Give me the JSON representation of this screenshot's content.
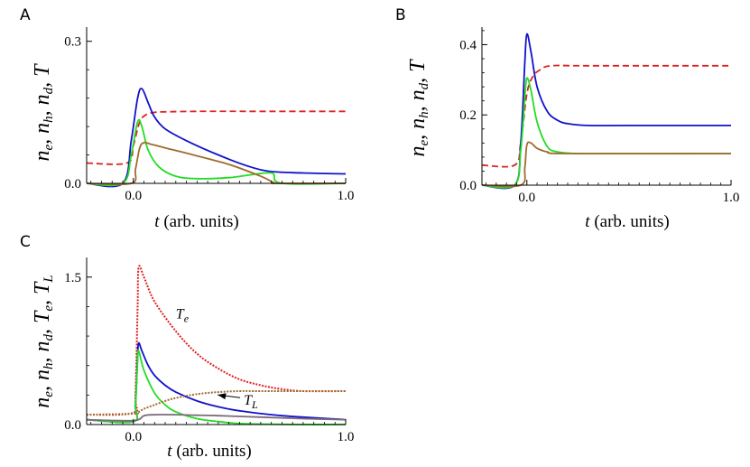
{
  "chart_data": [
    {
      "panel": "A",
      "type": "line",
      "ylabel": "n_e, n_h, n_d, T",
      "xlabel": "t (arb. units)",
      "xlim": [
        -0.22,
        1.0
      ],
      "ylim": [
        0,
        0.33
      ],
      "xticks": [
        {
          "v": 0.0,
          "label": "0.0"
        },
        {
          "v": 1.0,
          "label": "1.0"
        }
      ],
      "yticks": [
        {
          "v": 0.0,
          "label": "0.0"
        },
        {
          "v": 0.3,
          "label": "0.3"
        }
      ],
      "series": [
        {
          "name": "T",
          "color": "#e02020",
          "dash": true,
          "x": [
            -0.22,
            -0.03,
            0.0,
            0.03,
            0.06,
            0.1,
            0.15,
            0.3,
            0.6,
            1.0
          ],
          "y": [
            0.043,
            0.043,
            0.08,
            0.13,
            0.145,
            0.15,
            0.151,
            0.152,
            0.152,
            0.152
          ]
        },
        {
          "name": "n_e",
          "color": "#1111cc",
          "x": [
            -0.22,
            -0.05,
            -0.01,
            0.02,
            0.04,
            0.07,
            0.1,
            0.15,
            0.25,
            0.4,
            0.55,
            0.65,
            0.8,
            1.0
          ],
          "y": [
            0.0,
            0.0,
            0.09,
            0.18,
            0.2,
            0.17,
            0.14,
            0.115,
            0.09,
            0.06,
            0.035,
            0.025,
            0.022,
            0.02
          ]
        },
        {
          "name": "n_h",
          "color": "#22dd22",
          "x": [
            -0.22,
            -0.05,
            -0.01,
            0.02,
            0.04,
            0.07,
            0.12,
            0.2,
            0.3,
            0.45,
            0.55,
            0.62,
            0.66,
            0.7,
            1.0
          ],
          "y": [
            0.0,
            0.0,
            0.06,
            0.13,
            0.12,
            0.07,
            0.035,
            0.015,
            0.01,
            0.012,
            0.018,
            0.022,
            0.02,
            0.0,
            0.0
          ]
        },
        {
          "name": "n_d",
          "color": "#a06a30",
          "x": [
            -0.22,
            -0.01,
            0.01,
            0.03,
            0.05,
            0.08,
            0.15,
            0.3,
            0.45,
            0.6,
            0.66,
            0.68,
            1.0
          ],
          "y": [
            0.0,
            0.0,
            0.03,
            0.075,
            0.086,
            0.083,
            0.075,
            0.058,
            0.04,
            0.015,
            0.002,
            0.0,
            0.0
          ]
        }
      ]
    },
    {
      "panel": "B",
      "type": "line",
      "ylabel": "n_e, n_h, n_d, T",
      "xlabel": "t (arb. units)",
      "xlim": [
        -0.22,
        1.0
      ],
      "ylim": [
        0,
        0.45
      ],
      "xticks": [
        {
          "v": 0.0,
          "label": "0.0"
        },
        {
          "v": 1.0,
          "label": "1.0"
        }
      ],
      "yticks": [
        {
          "v": 0.0,
          "label": "0.0"
        },
        {
          "v": 0.2,
          "label": "0.2"
        },
        {
          "v": 0.4,
          "label": "0.4"
        }
      ],
      "series": [
        {
          "name": "T",
          "color": "#e02020",
          "dash": true,
          "x": [
            -0.22,
            -0.06,
            -0.03,
            0.0,
            0.03,
            0.07,
            0.12,
            0.3,
            1.0
          ],
          "y": [
            0.057,
            0.057,
            0.12,
            0.26,
            0.31,
            0.33,
            0.34,
            0.34,
            0.34
          ]
        },
        {
          "name": "n_e",
          "color": "#1111cc",
          "x": [
            -0.22,
            -0.06,
            -0.03,
            -0.01,
            0.0,
            0.02,
            0.05,
            0.1,
            0.15,
            0.2,
            0.3,
            0.5,
            1.0
          ],
          "y": [
            0.0,
            0.0,
            0.12,
            0.35,
            0.43,
            0.38,
            0.28,
            0.21,
            0.185,
            0.175,
            0.17,
            0.17,
            0.17
          ]
        },
        {
          "name": "n_h",
          "color": "#22dd22",
          "x": [
            -0.22,
            -0.06,
            -0.03,
            -0.01,
            0.0,
            0.02,
            0.05,
            0.1,
            0.15,
            0.25,
            0.4,
            1.0
          ],
          "y": [
            0.0,
            0.0,
            0.1,
            0.25,
            0.305,
            0.27,
            0.18,
            0.11,
            0.095,
            0.09,
            0.09,
            0.09
          ]
        },
        {
          "name": "n_d",
          "color": "#a06a30",
          "x": [
            -0.22,
            -0.03,
            -0.01,
            0.0,
            0.02,
            0.05,
            0.1,
            0.2,
            1.0
          ],
          "y": [
            0.0,
            0.0,
            0.05,
            0.115,
            0.12,
            0.105,
            0.095,
            0.09,
            0.09
          ]
        }
      ]
    },
    {
      "panel": "C",
      "type": "line",
      "ylabel": "n_e, n_h, n_d, T_e, T_L",
      "xlabel": "t (arb. units)",
      "xlim": [
        -0.22,
        1.0
      ],
      "ylim": [
        0,
        1.7
      ],
      "xticks": [
        {
          "v": 0.0,
          "label": "0.0"
        },
        {
          "v": 1.0,
          "label": "1.0"
        }
      ],
      "yticks": [
        {
          "v": 0.0,
          "label": "0.0"
        },
        {
          "v": 1.5,
          "label": "1.5"
        }
      ],
      "annotations": [
        {
          "text": "T_e",
          "base": "T",
          "sub": "e",
          "x": 0.2,
          "y": 1.08
        },
        {
          "text": "T_L",
          "base": "T",
          "sub": "L",
          "x": 0.52,
          "y": 0.2,
          "arrow_to": [
            0.38,
            0.32
          ]
        }
      ],
      "series": [
        {
          "name": "T_e",
          "color": "#e02020",
          "dotted": true,
          "x": [
            -0.22,
            0.0,
            0.01,
            0.02,
            0.025,
            0.05,
            0.1,
            0.2,
            0.3,
            0.4,
            0.5,
            0.6,
            0.7,
            0.8,
            1.0
          ],
          "y": [
            0.1,
            0.12,
            0.3,
            1.2,
            1.6,
            1.5,
            1.25,
            0.95,
            0.72,
            0.57,
            0.46,
            0.4,
            0.36,
            0.34,
            0.34
          ]
        },
        {
          "name": "n_e",
          "color": "#1111cc",
          "x": [
            -0.22,
            0.0,
            0.01,
            0.02,
            0.025,
            0.04,
            0.07,
            0.1,
            0.15,
            0.2,
            0.3,
            0.4,
            0.5,
            0.7,
            1.0
          ],
          "y": [
            0.05,
            0.03,
            0.2,
            0.7,
            0.83,
            0.75,
            0.6,
            0.5,
            0.4,
            0.33,
            0.24,
            0.18,
            0.14,
            0.09,
            0.05
          ]
        },
        {
          "name": "n_h",
          "color": "#22dd22",
          "x": [
            -0.22,
            0.0,
            0.01,
            0.02,
            0.025,
            0.05,
            0.1,
            0.15,
            0.2,
            0.3,
            0.4,
            0.5,
            0.6,
            0.8,
            1.0
          ],
          "y": [
            0.05,
            0.03,
            0.2,
            0.65,
            0.75,
            0.55,
            0.32,
            0.2,
            0.13,
            0.06,
            0.03,
            0.01,
            0.005,
            0.0,
            0.0
          ]
        },
        {
          "name": "n_d",
          "color": "#7a6a7a",
          "x": [
            -0.22,
            0.0,
            0.05,
            0.1,
            0.2,
            0.3,
            0.4,
            0.6,
            0.8,
            1.0
          ],
          "y": [
            0.05,
            0.04,
            0.09,
            0.1,
            0.1,
            0.095,
            0.09,
            0.075,
            0.06,
            0.05
          ]
        },
        {
          "name": "T_L",
          "color": "#a06a30",
          "dotted": true,
          "x": [
            -0.22,
            0.0,
            0.02,
            0.05,
            0.1,
            0.15,
            0.2,
            0.3,
            0.4,
            0.5,
            0.6,
            0.8,
            1.0
          ],
          "y": [
            0.1,
            0.11,
            0.12,
            0.16,
            0.2,
            0.24,
            0.27,
            0.31,
            0.33,
            0.34,
            0.34,
            0.34,
            0.34
          ]
        }
      ]
    }
  ]
}
